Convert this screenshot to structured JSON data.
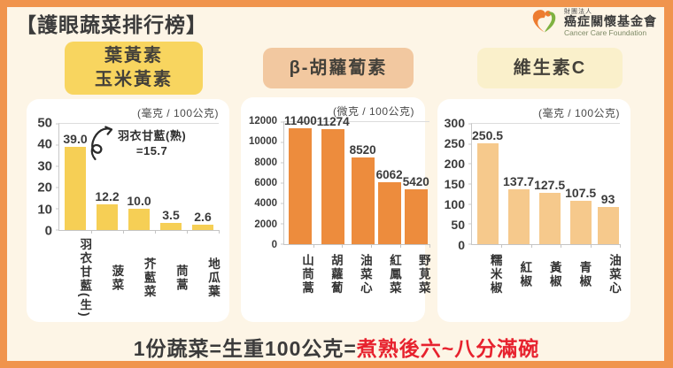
{
  "header": {
    "title": "【護眼蔬菜排行榜】",
    "logo": {
      "org_type": "財團法人",
      "org_name": "癌症關懷基金會",
      "org_name_en": "Cancer Care Foundation"
    }
  },
  "footer": {
    "text_normal": "1份蔬菜=生重100公克=",
    "text_highlight": "煮熟後六~八分滿碗"
  },
  "colors": {
    "frame_orange": "#F0944D",
    "background_cream": "#FDF5E6",
    "badge1": "#F8D55F",
    "badge2": "#F2C8A0",
    "badge3": "#FAF0CB",
    "bar1": "#F6CF55",
    "bar2": "#ED8C3D",
    "bar3": "#F6C98C",
    "highlight_red": "#E7222E",
    "logo_orange": "#ED7C30",
    "logo_green": "#7FB241"
  },
  "chart_data": [
    {
      "type": "bar",
      "title": "葉黃素\n玉米黃素",
      "unit": "(毫克 / 100公克)",
      "categories": [
        "羽衣甘藍(生)",
        "菠菜",
        "芥藍菜",
        "茼蒿",
        "地瓜葉"
      ],
      "values": [
        39.0,
        12.2,
        10.0,
        3.5,
        2.6
      ],
      "value_labels": [
        "39.0",
        "12.2",
        "10.0",
        "3.5",
        "2.6"
      ],
      "ylim": [
        0,
        50
      ],
      "yticks": [
        "50",
        "40",
        "30",
        "20",
        "10",
        "0"
      ],
      "bar_color": "#F6CF55",
      "annotation": "羽衣甘藍(熟)\n=15.7",
      "legend": "none",
      "grid": "top-line-only"
    },
    {
      "type": "bar",
      "title": "β-胡蘿蔔素",
      "unit": "(微克 / 100公克)",
      "categories": [
        "山茼蒿",
        "胡蘿蔔",
        "油菜心",
        "紅鳳菜",
        "野莧菜"
      ],
      "values": [
        11400,
        11274,
        8520,
        6062,
        5420
      ],
      "value_labels": [
        "11400",
        "11274",
        "8520",
        "6062",
        "5420"
      ],
      "ylim": [
        0,
        12000
      ],
      "yticks": [
        "12000",
        "10000",
        "8000",
        "6000",
        "4000",
        "2000",
        "0"
      ],
      "bar_color": "#ED8C3D",
      "legend": "none",
      "grid": "top-line-only"
    },
    {
      "type": "bar",
      "title": "維生素C",
      "unit": "(毫克 / 100公克)",
      "categories": [
        "糯米椒",
        "紅椒",
        "黃椒",
        "青椒",
        "油菜心"
      ],
      "values": [
        250.5,
        137.7,
        127.5,
        107.5,
        93
      ],
      "value_labels": [
        "250.5",
        "137.7",
        "127.5",
        "107.5",
        "93"
      ],
      "ylim": [
        0,
        300
      ],
      "yticks": [
        "300",
        "250",
        "200",
        "150",
        "100",
        "50",
        "0"
      ],
      "bar_color": "#F6C98C",
      "legend": "none",
      "grid": "top-line-only"
    }
  ]
}
